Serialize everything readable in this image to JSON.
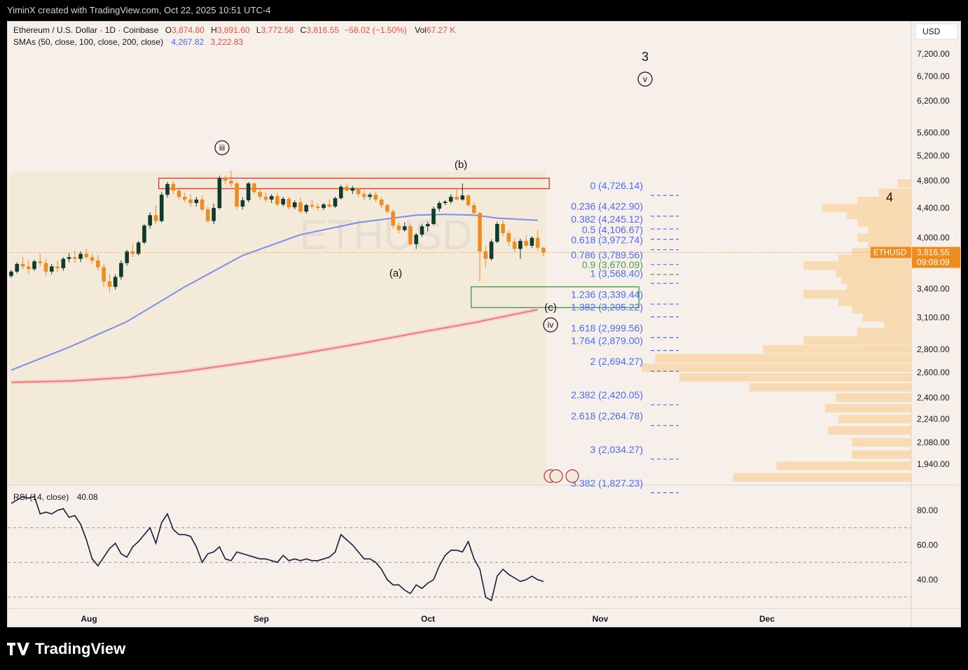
{
  "header": {
    "credit": "YiminX created with TradingView.com, Oct 22, 2025 10:51 UTC-4"
  },
  "legend": {
    "symbol": "Ethereum / U.S. Dollar · 1D · Coinbase",
    "o_label": "O",
    "o": "3,874.80",
    "h_label": "H",
    "h": "3,891.60",
    "l_label": "L",
    "l": "3,772.58",
    "c_label": "C",
    "c": "3,816.55",
    "change": "−58.02 (−1.50%)",
    "vol_label": "Vol",
    "vol": "67.27 K",
    "sma_label": "SMAs (50, close, 100, close, 200, close)",
    "sma1": "4,267.82",
    "sma2": "3,222.83",
    "rsi_label": "RSI (14, close)",
    "rsi": "40.08"
  },
  "currency": "USD",
  "price_tag": {
    "symbol": "ETHUSD",
    "price": "3,816.55",
    "countdown": "09:08:09"
  },
  "wave_labels": {
    "iii": "iii",
    "b": "(b)",
    "a": "(a)",
    "c": "(c)",
    "iv": "iv",
    "three": "3",
    "v": "v",
    "four": "4"
  },
  "branding": {
    "logo": "TradingView"
  },
  "colors": {
    "up": "#0f3b2e",
    "down": "#f08c1e",
    "sma_blue": "#7b8fee",
    "sma_red": "#ef7b78",
    "fib": "#4a6cf7",
    "fib_green": "#44a447",
    "volume_profile": "#f8d7a8",
    "box_red": "#e53935",
    "box_green": "#43a047",
    "rsi": "#1a1a40",
    "price_tag": "#f08c1e"
  },
  "chart_data": [
    {
      "type": "candlestick",
      "title": "",
      "x_axis": {
        "ticks": [
          "Aug",
          "Sep",
          "Oct",
          "Nov",
          "Dec"
        ]
      },
      "y_axis": {
        "scale": "log",
        "ticks": [
          7200,
          6700,
          6200,
          5600,
          5200,
          4800,
          4400,
          4000,
          3400,
          3100,
          2800,
          2600,
          2400,
          2240,
          2080,
          1940
        ],
        "tick_labels": [
          "7,200.00",
          "6,700.00",
          "6,200.00",
          "5,600.00",
          "5,200.00",
          "4,800.00",
          "4,400.00",
          "4,000.00",
          "3,400.00",
          "3,100.00",
          "2,800.00",
          "2,600.00",
          "2,400.00",
          "2,240.00",
          "2,080.00",
          "1,940.00"
        ],
        "range": [
          1800,
          7800
        ]
      },
      "candles": [
        [
          3540,
          3610,
          3520,
          3590
        ],
        [
          3590,
          3700,
          3570,
          3680
        ],
        [
          3680,
          3760,
          3620,
          3650
        ],
        [
          3650,
          3720,
          3560,
          3620
        ],
        [
          3620,
          3730,
          3600,
          3710
        ],
        [
          3710,
          3800,
          3650,
          3690
        ],
        [
          3690,
          3740,
          3540,
          3590
        ],
        [
          3590,
          3680,
          3560,
          3650
        ],
        [
          3650,
          3720,
          3580,
          3630
        ],
        [
          3630,
          3760,
          3600,
          3740
        ],
        [
          3740,
          3810,
          3700,
          3760
        ],
        [
          3760,
          3840,
          3690,
          3740
        ],
        [
          3740,
          3830,
          3700,
          3800
        ],
        [
          3800,
          3860,
          3740,
          3760
        ],
        [
          3760,
          3800,
          3680,
          3720
        ],
        [
          3720,
          3790,
          3600,
          3640
        ],
        [
          3640,
          3680,
          3420,
          3480
        ],
        [
          3480,
          3560,
          3360,
          3420
        ],
        [
          3420,
          3560,
          3390,
          3530
        ],
        [
          3530,
          3720,
          3500,
          3690
        ],
        [
          3690,
          3850,
          3660,
          3830
        ],
        [
          3830,
          3920,
          3760,
          3800
        ],
        [
          3800,
          3960,
          3780,
          3940
        ],
        [
          3940,
          4180,
          3920,
          4160
        ],
        [
          4160,
          4340,
          4120,
          4300
        ],
        [
          4300,
          4440,
          4180,
          4220
        ],
        [
          4220,
          4630,
          4200,
          4590
        ],
        [
          4590,
          4780,
          4550,
          4750
        ],
        [
          4750,
          4790,
          4600,
          4650
        ],
        [
          4650,
          4700,
          4520,
          4560
        ],
        [
          4560,
          4620,
          4480,
          4520
        ],
        [
          4520,
          4600,
          4420,
          4470
        ],
        [
          4470,
          4560,
          4420,
          4520
        ],
        [
          4520,
          4580,
          4350,
          4380
        ],
        [
          4380,
          4420,
          4200,
          4220
        ],
        [
          4220,
          4460,
          4180,
          4400
        ],
        [
          4400,
          4880,
          4380,
          4840
        ],
        [
          4840,
          4880,
          4750,
          4800
        ],
        [
          4800,
          4960,
          4710,
          4760
        ],
        [
          4760,
          4790,
          4380,
          4420
        ],
        [
          4420,
          4550,
          4380,
          4510
        ],
        [
          4510,
          4780,
          4480,
          4760
        ],
        [
          4760,
          4770,
          4600,
          4630
        ],
        [
          4630,
          4690,
          4520,
          4560
        ],
        [
          4560,
          4620,
          4480,
          4520
        ],
        [
          4520,
          4600,
          4470,
          4570
        ],
        [
          4570,
          4620,
          4420,
          4450
        ],
        [
          4450,
          4560,
          4420,
          4530
        ],
        [
          4530,
          4560,
          4380,
          4410
        ],
        [
          4410,
          4510,
          4380,
          4480
        ],
        [
          4480,
          4550,
          4320,
          4350
        ],
        [
          4350,
          4460,
          4320,
          4440
        ],
        [
          4440,
          4510,
          4390,
          4420
        ],
        [
          4420,
          4460,
          4360,
          4400
        ],
        [
          4400,
          4470,
          4370,
          4450
        ],
        [
          4450,
          4520,
          4400,
          4420
        ],
        [
          4420,
          4560,
          4400,
          4540
        ],
        [
          4540,
          4740,
          4520,
          4710
        ],
        [
          4710,
          4760,
          4640,
          4650
        ],
        [
          4650,
          4720,
          4600,
          4690
        ],
        [
          4690,
          4700,
          4560,
          4600
        ],
        [
          4600,
          4650,
          4510,
          4560
        ],
        [
          4560,
          4620,
          4520,
          4590
        ],
        [
          4590,
          4640,
          4480,
          4520
        ],
        [
          4520,
          4560,
          4400,
          4440
        ],
        [
          4440,
          4460,
          4320,
          4350
        ],
        [
          4350,
          4380,
          4120,
          4160
        ],
        [
          4160,
          4200,
          4060,
          4100
        ],
        [
          4100,
          4200,
          4080,
          4150
        ],
        [
          4150,
          4180,
          3900,
          3920
        ],
        [
          3920,
          4060,
          3860,
          4040
        ],
        [
          4040,
          4180,
          4010,
          4150
        ],
        [
          4150,
          4210,
          4080,
          4180
        ],
        [
          4180,
          4420,
          4160,
          4390
        ],
        [
          4390,
          4500,
          4350,
          4470
        ],
        [
          4470,
          4510,
          4440,
          4490
        ],
        [
          4490,
          4600,
          4460,
          4560
        ],
        [
          4560,
          4690,
          4510,
          4520
        ],
        [
          4520,
          4760,
          4500,
          4580
        ],
        [
          4580,
          4590,
          4420,
          4440
        ],
        [
          4440,
          4480,
          4300,
          4330
        ],
        [
          4330,
          4340,
          3480,
          3830
        ],
        [
          3830,
          3890,
          3640,
          3740
        ],
        [
          3740,
          3980,
          3720,
          3950
        ],
        [
          3950,
          4210,
          3930,
          4180
        ],
        [
          4180,
          4230,
          4020,
          4060
        ],
        [
          4060,
          4100,
          3900,
          3950
        ],
        [
          3950,
          4000,
          3820,
          3860
        ],
        [
          3860,
          3990,
          3740,
          3960
        ],
        [
          3960,
          4030,
          3880,
          3900
        ],
        [
          3900,
          4020,
          3870,
          4000
        ],
        [
          4000,
          4100,
          3840,
          3875
        ],
        [
          3875,
          3890,
          3770,
          3817
        ]
      ],
      "sma_50": [
        [
          0,
          2620
        ],
        [
          10,
          2820
        ],
        [
          20,
          3060
        ],
        [
          30,
          3420
        ],
        [
          40,
          3780
        ],
        [
          50,
          4040
        ],
        [
          60,
          4200
        ],
        [
          70,
          4300
        ],
        [
          75,
          4310
        ],
        [
          80,
          4300
        ],
        [
          84,
          4260
        ],
        [
          91,
          4230
        ]
      ],
      "sma_200": [
        [
          0,
          2520
        ],
        [
          10,
          2530
        ],
        [
          20,
          2560
        ],
        [
          30,
          2610
        ],
        [
          40,
          2680
        ],
        [
          50,
          2760
        ],
        [
          60,
          2850
        ],
        [
          70,
          2950
        ],
        [
          80,
          3050
        ],
        [
          91,
          3180
        ]
      ],
      "fib_levels": [
        {
          "label": "0 (4,726.14)",
          "price": 4726.14
        },
        {
          "label": "0.236 (4,422.90)",
          "price": 4422.9
        },
        {
          "label": "0.382 (4,245.12)",
          "price": 4245.12
        },
        {
          "label": "0.5 (4,106.67)",
          "price": 4106.67
        },
        {
          "label": "0.618 (3,972.74)",
          "price": 3972.74
        },
        {
          "label": "0.786 (3,789.56)",
          "price": 3789.56
        },
        {
          "label": "0.9 (3,670.09)",
          "price": 3670.09,
          "highlight": true
        },
        {
          "label": "1 (3,568.40)",
          "price": 3568.4
        },
        {
          "label": "1.236 (3,339.44)",
          "price": 3339.44
        },
        {
          "label": "1.382 (3,205.22)",
          "price": 3205.22
        },
        {
          "label": "1.618 (2,999.56)",
          "price": 2999.56
        },
        {
          "label": "1.764 (2,879.00)",
          "price": 2879.0
        },
        {
          "label": "2 (2,694.27)",
          "price": 2694.27
        },
        {
          "label": "2.382 (2,420.05)",
          "price": 2420.05
        },
        {
          "label": "2.618 (2,264.78)",
          "price": 2264.78
        },
        {
          "label": "3 (2,034.27)",
          "price": 2034.27
        },
        {
          "label": "3.382 (1,827.23)",
          "price": 1827.23
        }
      ],
      "zones": {
        "resistance": {
          "from": 4680,
          "to": 4840
        },
        "support": {
          "from": 3200,
          "to": 3420
        }
      },
      "volume_profile": [
        [
          4760,
          0.05
        ],
        [
          4620,
          0.12
        ],
        [
          4500,
          0.2
        ],
        [
          4400,
          0.33
        ],
        [
          4300,
          0.24
        ],
        [
          4200,
          0.2
        ],
        [
          4100,
          0.16
        ],
        [
          4000,
          0.2
        ],
        [
          3900,
          0.16
        ],
        [
          3820,
          0.22
        ],
        [
          3740,
          0.27
        ],
        [
          3660,
          0.4
        ],
        [
          3580,
          0.28
        ],
        [
          3500,
          0.26
        ],
        [
          3420,
          0.24
        ],
        [
          3340,
          0.4
        ],
        [
          3260,
          0.27
        ],
        [
          3180,
          0.22
        ],
        [
          3100,
          0.18
        ],
        [
          3040,
          0.1
        ],
        [
          2960,
          0.2
        ],
        [
          2880,
          0.4
        ],
        [
          2800,
          0.55
        ],
        [
          2720,
          0.95
        ],
        [
          2640,
          1.0
        ],
        [
          2560,
          0.86
        ],
        [
          2480,
          0.6
        ],
        [
          2400,
          0.28
        ],
        [
          2320,
          0.32
        ],
        [
          2240,
          0.27
        ],
        [
          2160,
          0.31
        ],
        [
          2080,
          0.22
        ],
        [
          2000,
          0.22
        ],
        [
          1930,
          0.5
        ],
        [
          1860,
          0.66
        ]
      ]
    },
    {
      "type": "line",
      "title": "RSI (14, close)",
      "y_axis": {
        "ticks": [
          80,
          60,
          40
        ],
        "tick_labels": [
          "80.00",
          "60.00",
          "40.00"
        ],
        "range": [
          28,
          90
        ]
      },
      "bands": [
        70,
        50,
        30
      ],
      "values": [
        84,
        86,
        88,
        87,
        88,
        78,
        79,
        78,
        80,
        81,
        76,
        77,
        72,
        63,
        52,
        48,
        53,
        58,
        61,
        55,
        53,
        59,
        62,
        66,
        70,
        61,
        73,
        78,
        69,
        66,
        66,
        65,
        59,
        50,
        55,
        56,
        59,
        52,
        51,
        56,
        55,
        54,
        53,
        52,
        52,
        51,
        50,
        54,
        51,
        52,
        51,
        52,
        51,
        51,
        52,
        53,
        56,
        66,
        63,
        60,
        56,
        52,
        52,
        50,
        46,
        40,
        37,
        37,
        34,
        32,
        37,
        35,
        38,
        40,
        48,
        54,
        57,
        57,
        56,
        62,
        52,
        46,
        30,
        28,
        42,
        46,
        43,
        41,
        39,
        40,
        42,
        40,
        39
      ]
    }
  ]
}
